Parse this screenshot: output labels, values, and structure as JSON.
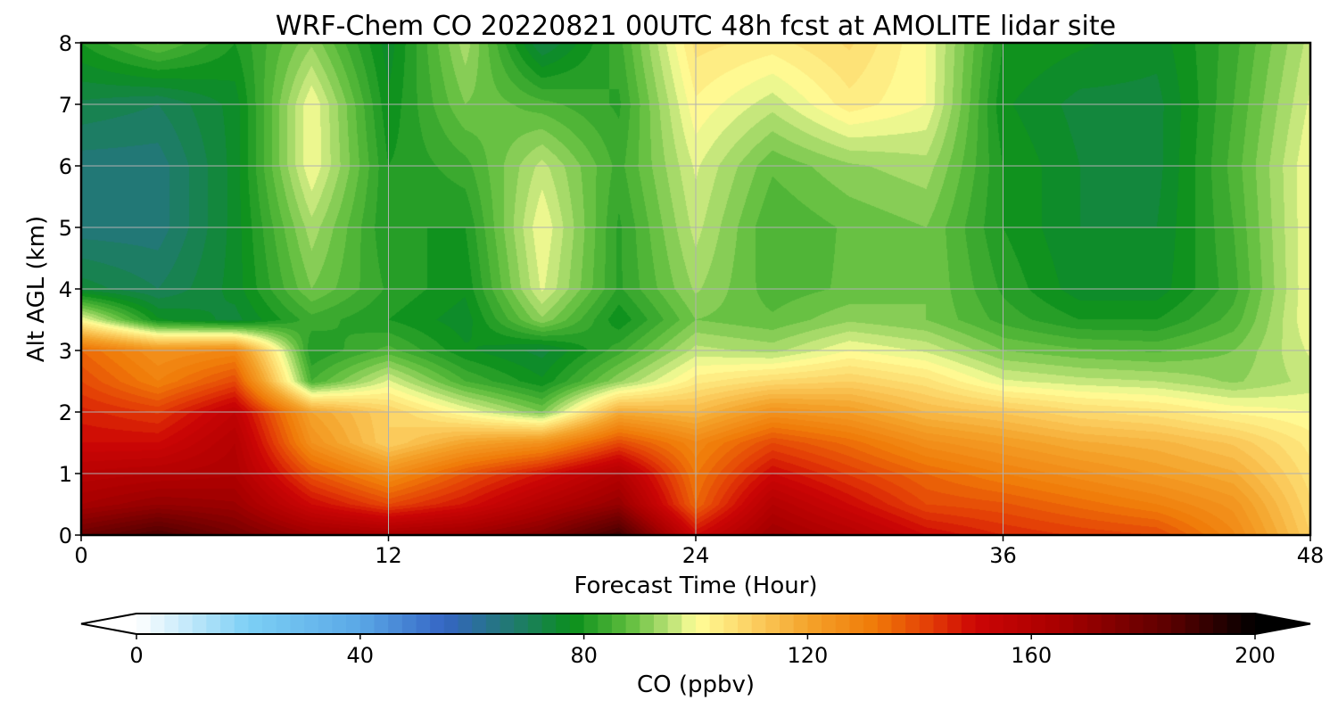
{
  "chart_data": {
    "type": "heatmap",
    "title": "WRF-Chem CO  20220821 00UTC 48h fcst at AMOLITE lidar site",
    "xlabel": "Forecast Time (Hour)",
    "ylabel": "Alt AGL (km)",
    "xlim": [
      0,
      48
    ],
    "ylim": [
      0,
      8
    ],
    "xticks": [
      0,
      12,
      24,
      36,
      48
    ],
    "yticks": [
      0,
      1,
      2,
      3,
      4,
      5,
      6,
      7,
      8
    ],
    "grid": true,
    "x": [
      0,
      3,
      6,
      9,
      12,
      15,
      18,
      21,
      24,
      27,
      30,
      33,
      36,
      39,
      42,
      45,
      48
    ],
    "y": [
      0,
      0.5,
      1,
      1.5,
      2,
      2.5,
      3,
      3.5,
      4,
      5,
      6,
      7,
      8
    ],
    "z": [
      [
        180,
        188,
        178,
        168,
        165,
        168,
        175,
        190,
        150,
        168,
        160,
        150,
        145,
        142,
        140,
        128,
        110
      ],
      [
        165,
        170,
        168,
        150,
        140,
        148,
        160,
        170,
        135,
        160,
        150,
        140,
        138,
        134,
        130,
        124,
        108
      ],
      [
        158,
        160,
        162,
        138,
        126,
        138,
        148,
        160,
        132,
        150,
        142,
        135,
        130,
        126,
        122,
        118,
        106
      ],
      [
        150,
        150,
        160,
        125,
        110,
        120,
        125,
        140,
        128,
        140,
        134,
        126,
        122,
        118,
        116,
        112,
        104
      ],
      [
        146,
        142,
        155,
        120,
        110,
        100,
        90,
        118,
        115,
        125,
        122,
        115,
        112,
        108,
        106,
        102,
        100
      ],
      [
        140,
        130,
        140,
        85,
        98,
        85,
        78,
        92,
        104,
        108,
        110,
        106,
        98,
        96,
        95,
        92,
        96
      ],
      [
        135,
        125,
        128,
        80,
        86,
        78,
        74,
        84,
        96,
        94,
        100,
        97,
        90,
        88,
        87,
        90,
        98
      ],
      [
        100,
        78,
        74,
        84,
        80,
        76,
        92,
        78,
        90,
        88,
        92,
        90,
        84,
        80,
        80,
        86,
        100
      ],
      [
        74,
        70,
        76,
        90,
        82,
        78,
        98,
        82,
        93,
        86,
        88,
        90,
        82,
        76,
        76,
        84,
        100
      ],
      [
        66,
        66,
        76,
        94,
        80,
        80,
        100,
        82,
        96,
        85,
        88,
        90,
        80,
        75,
        75,
        85,
        100
      ],
      [
        66,
        66,
        76,
        100,
        80,
        84,
        96,
        84,
        98,
        88,
        92,
        94,
        80,
        75,
        74,
        86,
        100
      ],
      [
        72,
        70,
        76,
        100,
        78,
        90,
        86,
        82,
        102,
        96,
        104,
        100,
        78,
        74,
        74,
        85,
        98
      ],
      [
        80,
        88,
        80,
        92,
        76,
        94,
        72,
        84,
        106,
        104,
        108,
        100,
        80,
        78,
        76,
        84,
        96
      ]
    ],
    "colorbar": {
      "label": "CO  (ppbv)",
      "min": 0,
      "max": 200,
      "ticks": [
        0,
        40,
        80,
        120,
        160,
        200
      ],
      "extend": "both",
      "stops": [
        {
          "v": 0,
          "c": "#ffffff"
        },
        {
          "v": 20,
          "c": "#7ccff5"
        },
        {
          "v": 40,
          "c": "#5aa8e6"
        },
        {
          "v": 55,
          "c": "#3565c4"
        },
        {
          "v": 68,
          "c": "#1f7b6a"
        },
        {
          "v": 78,
          "c": "#0a8f1c"
        },
        {
          "v": 88,
          "c": "#5fbd3d"
        },
        {
          "v": 96,
          "c": "#c2e57a"
        },
        {
          "v": 100,
          "c": "#ffff99"
        },
        {
          "v": 110,
          "c": "#fcd062"
        },
        {
          "v": 120,
          "c": "#f4a32b"
        },
        {
          "v": 132,
          "c": "#f07a08"
        },
        {
          "v": 142,
          "c": "#e33c06"
        },
        {
          "v": 150,
          "c": "#cc0505"
        },
        {
          "v": 165,
          "c": "#a80000"
        },
        {
          "v": 185,
          "c": "#5a0000"
        },
        {
          "v": 200,
          "c": "#000000"
        }
      ]
    }
  }
}
